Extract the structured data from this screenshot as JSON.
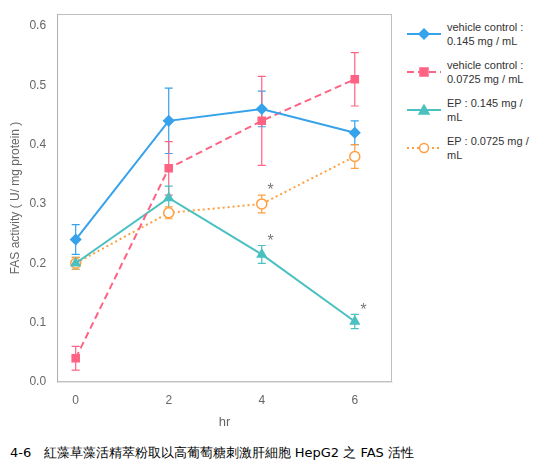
{
  "chart_data": {
    "type": "line",
    "x": [
      0,
      2,
      4,
      6
    ],
    "series": [
      {
        "name": "vehicle control :\n0.145 mg / mL",
        "values": [
          0.24,
          0.44,
          0.46,
          0.42
        ],
        "yerr": [
          0.025,
          0.055,
          0.03,
          0.02
        ],
        "marker": "diamond",
        "line_style": "solid"
      },
      {
        "name": "vehicle control :\n0.0725 mg / mL",
        "values": [
          0.04,
          0.36,
          0.44,
          0.51
        ],
        "yerr": [
          0.02,
          0.045,
          0.075,
          0.045
        ],
        "marker": "square",
        "line_style": "dashed"
      },
      {
        "name": "EP : 0.145 mg /\nmL",
        "values": [
          0.2,
          0.31,
          0.215,
          0.102
        ],
        "yerr": [
          0.01,
          0.02,
          0.015,
          0.012
        ],
        "marker": "triangle",
        "line_style": "solid",
        "annotations": [
          {
            "x": 4,
            "text": "*"
          },
          {
            "x": 6,
            "text": "*"
          }
        ]
      },
      {
        "name": "EP : 0.0725 mg /\nmL",
        "values": [
          0.2,
          0.285,
          0.3,
          0.38
        ],
        "yerr": [
          0.01,
          0.01,
          0.015,
          0.02
        ],
        "marker": "hollow_circle",
        "line_style": "dotted",
        "annotations": [
          {
            "x": 4,
            "text": "*"
          }
        ]
      }
    ],
    "xlabel": "hr",
    "ylabel": "FAS activity ( U/ mg protein )",
    "caption": "4-6   紅藻草藻活精萃粉取以高葡萄糖刺激肝細胞 HepG2 之 FAS 活性",
    "xlim": [
      -0.4,
      6.8
    ],
    "ylim": [
      0.0,
      0.62
    ],
    "xticks": [
      0,
      2,
      4,
      6
    ],
    "yticks": [
      {
        "value": 0.0,
        "label": "0.0"
      },
      0.1,
      0.2,
      0.3,
      0.4,
      0.5,
      0.6
    ],
    "grid": false,
    "legend": "right"
  }
}
